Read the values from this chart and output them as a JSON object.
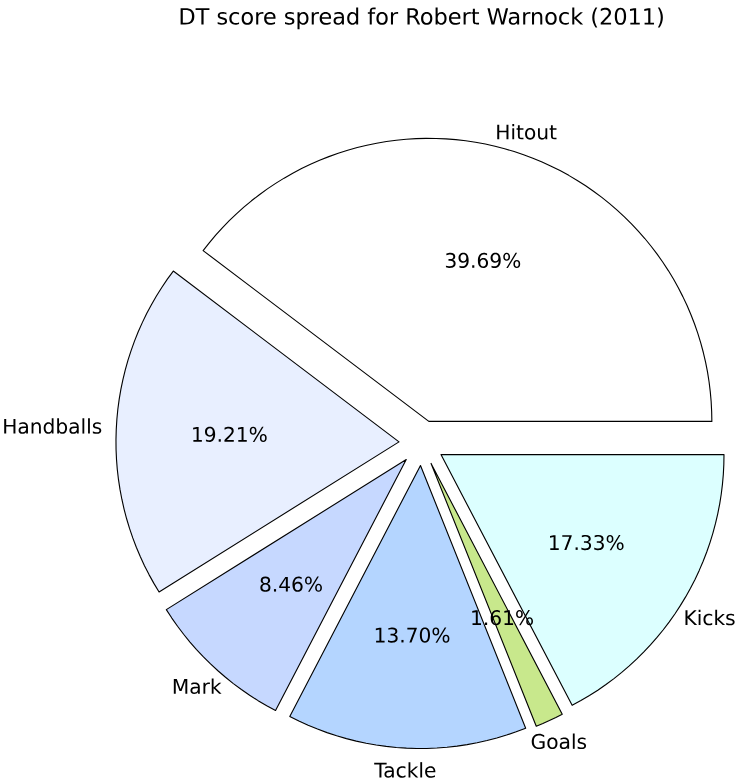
{
  "chart_data": {
    "type": "pie",
    "title": "DT score spread for Robert Warnock (2011)",
    "categories": [
      "Hitout",
      "Handballs",
      "Mark",
      "Tackle",
      "Goals",
      "Kicks"
    ],
    "values": [
      39.69,
      19.21,
      8.46,
      13.7,
      1.61,
      17.33
    ],
    "value_labels": [
      "39.69%",
      "19.21%",
      "8.46%",
      "13.70%",
      "1.61%",
      "17.33%"
    ],
    "colors": [
      "#ffffff",
      "#e8efff",
      "#c6d8ff",
      "#b4d5ff",
      "#c8e88c",
      "#dcffff"
    ]
  }
}
